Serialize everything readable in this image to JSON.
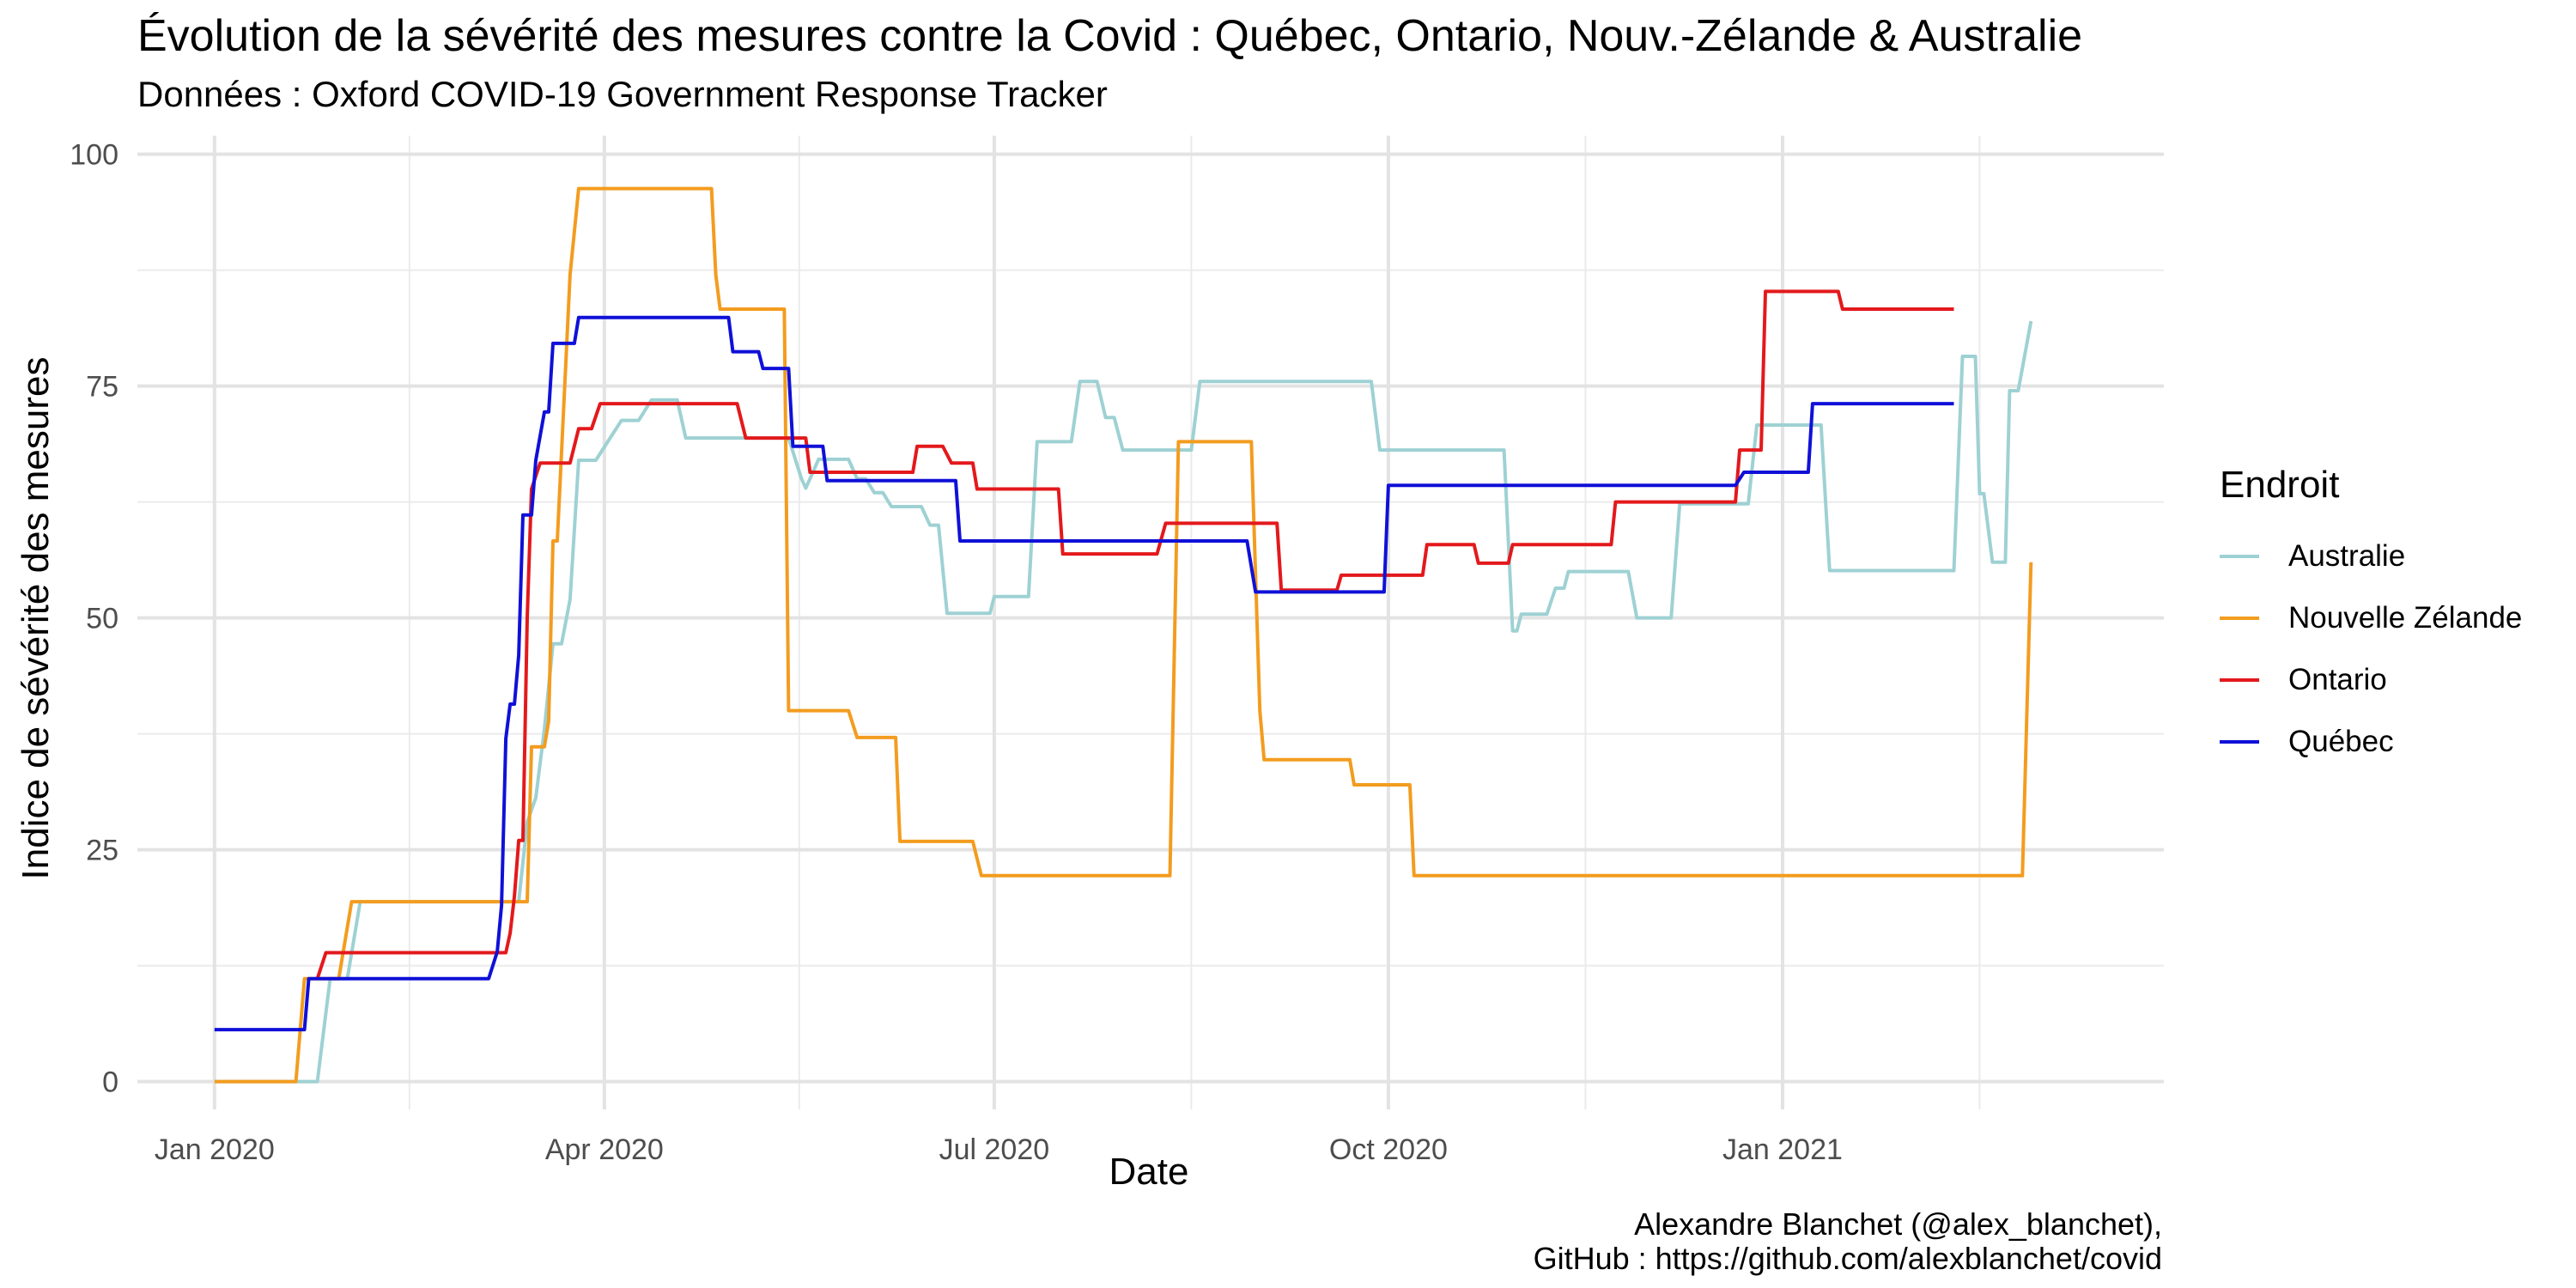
{
  "chart_data": {
    "type": "line",
    "title": "Évolution de la sévérité des mesures contre la Covid : Québec, Ontario, Nouv.-Zélande & Australie",
    "subtitle": "Données : Oxford COVID-19 Government Response Tracker",
    "xlabel": "Date",
    "ylabel": "Indice de sévérité des mesures",
    "x_ticks": [
      {
        "date": "2020-01-01",
        "label": "Jan 2020"
      },
      {
        "date": "2020-04-01",
        "label": "Apr 2020"
      },
      {
        "date": "2020-07-01",
        "label": "Jul 2020"
      },
      {
        "date": "2020-10-01",
        "label": "Oct 2020"
      },
      {
        "date": "2021-01-01",
        "label": "Jan 2021"
      }
    ],
    "xlim": [
      "2019-12-14",
      "2021-03-31"
    ],
    "y_ticks": [
      0,
      25,
      50,
      75,
      100
    ],
    "ylim": [
      -3,
      102
    ],
    "grid": true,
    "legend": {
      "title": "Endroit",
      "position": "right"
    },
    "series": [
      {
        "name": "Australie",
        "color": "#9ED1D3",
        "points": [
          [
            "2020-01-01",
            0
          ],
          [
            "2020-01-25",
            0
          ],
          [
            "2020-01-28",
            11.1
          ],
          [
            "2020-02-01",
            11.1
          ],
          [
            "2020-02-04",
            19.4
          ],
          [
            "2020-03-12",
            19.4
          ],
          [
            "2020-03-14",
            28
          ],
          [
            "2020-03-16",
            30.6
          ],
          [
            "2020-03-18",
            38
          ],
          [
            "2020-03-20",
            47.2
          ],
          [
            "2020-03-22",
            47.2
          ],
          [
            "2020-03-24",
            52
          ],
          [
            "2020-03-26",
            67
          ],
          [
            "2020-03-30",
            67
          ],
          [
            "2020-04-05",
            71.3
          ],
          [
            "2020-04-09",
            71.3
          ],
          [
            "2020-04-12",
            73.5
          ],
          [
            "2020-04-18",
            73.5
          ],
          [
            "2020-04-20",
            69.4
          ],
          [
            "2020-05-14",
            69.4
          ],
          [
            "2020-05-17",
            65
          ],
          [
            "2020-05-18",
            64
          ],
          [
            "2020-05-19",
            65
          ],
          [
            "2020-05-21",
            67.1
          ],
          [
            "2020-05-28",
            67.1
          ],
          [
            "2020-05-30",
            65
          ],
          [
            "2020-06-01",
            65
          ],
          [
            "2020-06-03",
            63.5
          ],
          [
            "2020-06-05",
            63.5
          ],
          [
            "2020-06-07",
            62
          ],
          [
            "2020-06-14",
            62
          ],
          [
            "2020-06-16",
            60
          ],
          [
            "2020-06-18",
            60
          ],
          [
            "2020-06-20",
            50.5
          ],
          [
            "2020-06-30",
            50.5
          ],
          [
            "2020-07-01",
            52.3
          ],
          [
            "2020-07-09",
            52.3
          ],
          [
            "2020-07-11",
            69
          ],
          [
            "2020-07-19",
            69
          ],
          [
            "2020-07-21",
            75.5
          ],
          [
            "2020-07-25",
            75.5
          ],
          [
            "2020-07-27",
            71.6
          ],
          [
            "2020-07-29",
            71.6
          ],
          [
            "2020-07-31",
            68.1
          ],
          [
            "2020-08-16",
            68.1
          ],
          [
            "2020-08-18",
            75.5
          ],
          [
            "2020-09-27",
            75.5
          ],
          [
            "2020-09-29",
            68.1
          ],
          [
            "2020-10-28",
            68.1
          ],
          [
            "2020-10-30",
            48.6
          ],
          [
            "2020-10-31",
            48.6
          ],
          [
            "2020-11-01",
            50.4
          ],
          [
            "2020-11-07",
            50.4
          ],
          [
            "2020-11-09",
            53.2
          ],
          [
            "2020-11-11",
            53.2
          ],
          [
            "2020-11-12",
            55
          ],
          [
            "2020-11-26",
            55
          ],
          [
            "2020-11-28",
            50
          ],
          [
            "2020-12-06",
            50
          ],
          [
            "2020-12-08",
            62.3
          ],
          [
            "2020-12-24",
            62.3
          ],
          [
            "2020-12-26",
            70.8
          ],
          [
            "2021-01-10",
            70.8
          ],
          [
            "2021-01-12",
            55.1
          ],
          [
            "2021-02-10",
            55.1
          ],
          [
            "2021-02-12",
            78.2
          ],
          [
            "2021-02-15",
            78.2
          ],
          [
            "2021-02-16",
            63.4
          ],
          [
            "2021-02-17",
            63.4
          ],
          [
            "2021-02-19",
            56
          ],
          [
            "2021-02-22",
            56
          ],
          [
            "2021-02-23",
            74.5
          ],
          [
            "2021-02-25",
            74.5
          ],
          [
            "2021-02-28",
            82
          ]
        ]
      },
      {
        "name": "Nouvelle Zélande",
        "color": "#F39C1F",
        "points": [
          [
            "2020-01-01",
            0
          ],
          [
            "2020-01-20",
            0
          ],
          [
            "2020-01-22",
            11.1
          ],
          [
            "2020-01-30",
            11.1
          ],
          [
            "2020-02-02",
            19.4
          ],
          [
            "2020-03-14",
            19.4
          ],
          [
            "2020-03-15",
            36.1
          ],
          [
            "2020-03-18",
            36.1
          ],
          [
            "2020-03-19",
            38.9
          ],
          [
            "2020-03-20",
            58.3
          ],
          [
            "2020-03-21",
            58.3
          ],
          [
            "2020-03-24",
            87
          ],
          [
            "2020-03-26",
            96.3
          ],
          [
            "2020-04-26",
            96.3
          ],
          [
            "2020-04-27",
            87
          ],
          [
            "2020-04-28",
            83.3
          ],
          [
            "2020-05-13",
            83.3
          ],
          [
            "2020-05-14",
            40
          ],
          [
            "2020-05-28",
            40
          ],
          [
            "2020-05-30",
            37.1
          ],
          [
            "2020-06-08",
            37.1
          ],
          [
            "2020-06-09",
            25.9
          ],
          [
            "2020-06-26",
            25.9
          ],
          [
            "2020-06-28",
            22.2
          ],
          [
            "2020-08-11",
            22.2
          ],
          [
            "2020-08-13",
            69
          ],
          [
            "2020-08-30",
            69
          ],
          [
            "2020-09-01",
            40
          ],
          [
            "2020-09-02",
            34.7
          ],
          [
            "2020-09-22",
            34.7
          ],
          [
            "2020-09-23",
            32
          ],
          [
            "2020-10-06",
            32
          ],
          [
            "2020-10-07",
            22.2
          ],
          [
            "2021-02-26",
            22.2
          ],
          [
            "2021-02-28",
            56
          ]
        ]
      },
      {
        "name": "Ontario",
        "color": "#E3191C",
        "points": [
          [
            "2020-01-25",
            11.1
          ],
          [
            "2020-01-27",
            13.9
          ],
          [
            "2020-03-09",
            13.9
          ],
          [
            "2020-03-10",
            16
          ],
          [
            "2020-03-11",
            20
          ],
          [
            "2020-03-12",
            26
          ],
          [
            "2020-03-13",
            26
          ],
          [
            "2020-03-14",
            50
          ],
          [
            "2020-03-15",
            63.9
          ],
          [
            "2020-03-17",
            66.7
          ],
          [
            "2020-03-24",
            66.7
          ],
          [
            "2020-03-26",
            70.4
          ],
          [
            "2020-03-29",
            70.4
          ],
          [
            "2020-03-31",
            73.1
          ],
          [
            "2020-05-02",
            73.1
          ],
          [
            "2020-05-04",
            69.4
          ],
          [
            "2020-05-18",
            69.4
          ],
          [
            "2020-05-19",
            65.7
          ],
          [
            "2020-06-12",
            65.7
          ],
          [
            "2020-06-13",
            68.5
          ],
          [
            "2020-06-19",
            68.5
          ],
          [
            "2020-06-21",
            66.7
          ],
          [
            "2020-06-26",
            66.7
          ],
          [
            "2020-06-27",
            63.9
          ],
          [
            "2020-07-16",
            63.9
          ],
          [
            "2020-07-17",
            56.9
          ],
          [
            "2020-08-08",
            56.9
          ],
          [
            "2020-08-10",
            60.2
          ],
          [
            "2020-09-05",
            60.2
          ],
          [
            "2020-09-06",
            53
          ],
          [
            "2020-09-19",
            53
          ],
          [
            "2020-09-20",
            54.6
          ],
          [
            "2020-10-09",
            54.6
          ],
          [
            "2020-10-10",
            57.9
          ],
          [
            "2020-10-21",
            57.9
          ],
          [
            "2020-10-22",
            55.9
          ],
          [
            "2020-10-29",
            55.9
          ],
          [
            "2020-10-30",
            57.9
          ],
          [
            "2020-11-22",
            57.9
          ],
          [
            "2020-11-23",
            62.5
          ],
          [
            "2020-12-21",
            62.5
          ],
          [
            "2020-12-22",
            68.1
          ],
          [
            "2020-12-27",
            68.1
          ],
          [
            "2020-12-28",
            85.2
          ],
          [
            "2021-01-14",
            85.2
          ],
          [
            "2021-01-15",
            83.3
          ],
          [
            "2021-02-10",
            83.3
          ]
        ]
      },
      {
        "name": "Québec",
        "color": "#1010D8",
        "points": [
          [
            "2020-01-01",
            5.6
          ],
          [
            "2020-01-22",
            5.6
          ],
          [
            "2020-01-23",
            11.1
          ],
          [
            "2020-03-05",
            11.1
          ],
          [
            "2020-03-07",
            14
          ],
          [
            "2020-03-08",
            19
          ],
          [
            "2020-03-09",
            37
          ],
          [
            "2020-03-10",
            40.7
          ],
          [
            "2020-03-11",
            40.7
          ],
          [
            "2020-03-12",
            46
          ],
          [
            "2020-03-13",
            61.1
          ],
          [
            "2020-03-15",
            61.1
          ],
          [
            "2020-03-16",
            67
          ],
          [
            "2020-03-18",
            72.2
          ],
          [
            "2020-03-19",
            72.2
          ],
          [
            "2020-03-20",
            79.6
          ],
          [
            "2020-03-25",
            79.6
          ],
          [
            "2020-03-26",
            82.4
          ],
          [
            "2020-04-30",
            82.4
          ],
          [
            "2020-05-01",
            78.7
          ],
          [
            "2020-05-07",
            78.7
          ],
          [
            "2020-05-08",
            76.9
          ],
          [
            "2020-05-14",
            76.9
          ],
          [
            "2020-05-15",
            68.5
          ],
          [
            "2020-05-22",
            68.5
          ],
          [
            "2020-05-23",
            64.8
          ],
          [
            "2020-06-22",
            64.8
          ],
          [
            "2020-06-23",
            58.3
          ],
          [
            "2020-08-29",
            58.3
          ],
          [
            "2020-08-31",
            52.8
          ],
          [
            "2020-09-30",
            52.8
          ],
          [
            "2020-10-01",
            64.3
          ],
          [
            "2020-12-21",
            64.3
          ],
          [
            "2020-12-23",
            65.7
          ],
          [
            "2021-01-07",
            65.7
          ],
          [
            "2021-01-08",
            73.1
          ],
          [
            "2021-02-10",
            73.1
          ]
        ]
      }
    ],
    "caption_lines": [
      "Alexandre Blanchet (@alex_blanchet),",
      "GitHub : https://github.com/alexblanchet/covid"
    ]
  }
}
